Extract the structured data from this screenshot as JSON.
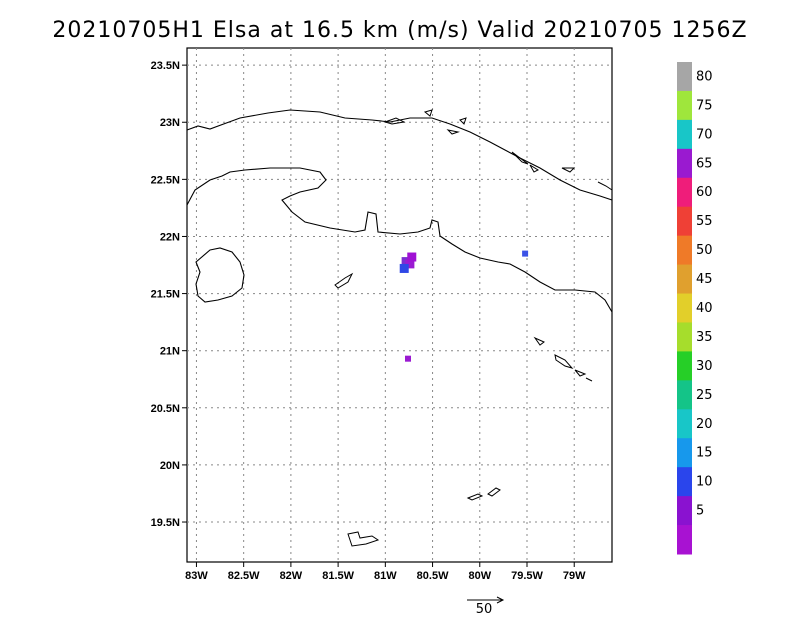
{
  "title": "20210705H1 Elsa at 16.5 km (m/s) Valid 20210705 1256Z",
  "map": {
    "lat_labels": [
      "23.5N",
      "23N",
      "22.5N",
      "22N",
      "21.5N",
      "21N",
      "20.5N",
      "20N",
      "19.5N"
    ],
    "lat_values": [
      23.5,
      23,
      22.5,
      22,
      21.5,
      21,
      20.5,
      20,
      19.5
    ],
    "lon_labels": [
      "83W",
      "82.5W",
      "82W",
      "81.5W",
      "81W",
      "80.5W",
      "80W",
      "79.5W",
      "79W"
    ],
    "lon_values": [
      -83,
      -82.5,
      -82,
      -81.5,
      -81,
      -80.5,
      -80,
      -79.5,
      -79
    ],
    "lat_range": [
      19.15,
      23.65
    ],
    "lon_range": [
      -83.1,
      -78.6
    ],
    "grid": true,
    "wind_echoes": [
      {
        "lon": -80.78,
        "lat": 21.78,
        "speed": 8,
        "color": "#7b2fd0"
      },
      {
        "lon": -80.74,
        "lat": 21.76,
        "speed": 6,
        "color": "#9b1ad2"
      },
      {
        "lon": -80.8,
        "lat": 21.72,
        "speed": 10,
        "color": "#2f48e6"
      },
      {
        "lon": -80.72,
        "lat": 21.82,
        "speed": 4,
        "color": "#a011d4"
      },
      {
        "lon": -79.52,
        "lat": 21.85,
        "speed": 10,
        "color": "#3b52e6"
      },
      {
        "lon": -80.76,
        "lat": 20.93,
        "speed": 5,
        "color": "#9b1ad2"
      }
    ]
  },
  "colorbar": {
    "labels": [
      "80",
      "75",
      "70",
      "65",
      "60",
      "55",
      "50",
      "45",
      "40",
      "35",
      "30",
      "25",
      "20",
      "15",
      "10",
      "5"
    ],
    "colors": [
      "#a6a6a6",
      "#9fe63c",
      "#18c6c8",
      "#9a1ad0",
      "#ef1d7a",
      "#ef4036",
      "#ef7a28",
      "#e0a02e",
      "#e2cf2a",
      "#a6dd2c",
      "#26cf27",
      "#14c488",
      "#18c6c8",
      "#1798ec",
      "#2a45ec",
      "#8a12d0",
      "#a812d2"
    ]
  },
  "vector_ref": {
    "label": "50"
  }
}
